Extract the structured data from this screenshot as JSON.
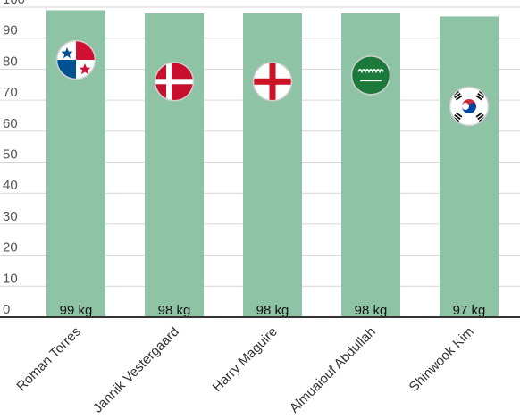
{
  "chart_data": {
    "type": "bar",
    "categories": [
      "Roman Torres",
      "Jannik Vestergaard",
      "Harry Maguire",
      "Almuaiouf Abdullah",
      "Shinwook Kim"
    ],
    "values": [
      99,
      98,
      98,
      98,
      97
    ],
    "value_labels": [
      "99 kg",
      "98 kg",
      "98 kg",
      "98 kg",
      "97 kg"
    ],
    "flags": [
      "panama-flag-icon",
      "denmark-flag-icon",
      "england-flag-icon",
      "saudi-arabia-flag-icon",
      "south-korea-flag-icon"
    ],
    "flag_values": [
      83,
      76,
      76,
      78,
      68
    ],
    "ylim": [
      0,
      100
    ],
    "yticks": [
      0,
      10,
      20,
      30,
      40,
      50,
      60,
      70,
      80,
      90,
      100
    ],
    "bar_color": "#8fc3a6",
    "grid": true,
    "title": "",
    "xlabel": "",
    "ylabel": ""
  }
}
